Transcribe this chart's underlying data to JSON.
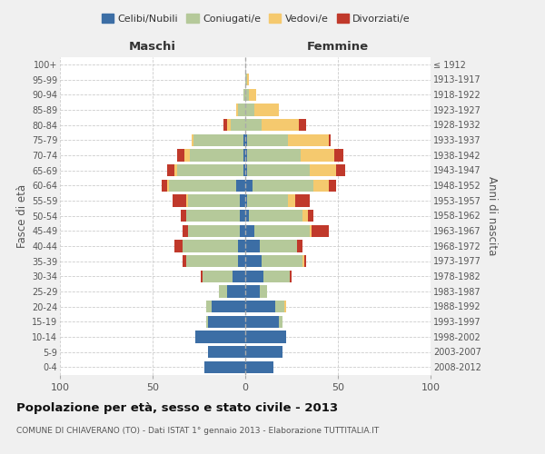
{
  "age_groups": [
    "0-4",
    "5-9",
    "10-14",
    "15-19",
    "20-24",
    "25-29",
    "30-34",
    "35-39",
    "40-44",
    "45-49",
    "50-54",
    "55-59",
    "60-64",
    "65-69",
    "70-74",
    "75-79",
    "80-84",
    "85-89",
    "90-94",
    "95-99",
    "100+"
  ],
  "birth_years": [
    "2008-2012",
    "2003-2007",
    "1998-2002",
    "1993-1997",
    "1988-1992",
    "1983-1987",
    "1978-1982",
    "1973-1977",
    "1968-1972",
    "1963-1967",
    "1958-1962",
    "1953-1957",
    "1948-1952",
    "1943-1947",
    "1938-1942",
    "1933-1937",
    "1928-1932",
    "1923-1927",
    "1918-1922",
    "1913-1917",
    "≤ 1912"
  ],
  "male": {
    "celibi": [
      22,
      20,
      27,
      20,
      18,
      10,
      7,
      4,
      4,
      3,
      3,
      3,
      5,
      1,
      1,
      1,
      0,
      0,
      0,
      0,
      0
    ],
    "coniugati": [
      0,
      0,
      0,
      1,
      3,
      4,
      16,
      28,
      30,
      28,
      29,
      28,
      36,
      36,
      29,
      27,
      8,
      4,
      1,
      0,
      0
    ],
    "vedovi": [
      0,
      0,
      0,
      0,
      0,
      0,
      0,
      0,
      0,
      0,
      0,
      1,
      1,
      1,
      3,
      1,
      2,
      1,
      0,
      0,
      0
    ],
    "divorziati": [
      0,
      0,
      0,
      0,
      0,
      0,
      1,
      2,
      4,
      3,
      3,
      7,
      3,
      4,
      4,
      0,
      2,
      0,
      0,
      0,
      0
    ]
  },
  "female": {
    "nubili": [
      15,
      20,
      22,
      18,
      16,
      8,
      10,
      9,
      8,
      5,
      2,
      1,
      4,
      1,
      1,
      1,
      0,
      0,
      0,
      0,
      0
    ],
    "coniugate": [
      0,
      0,
      0,
      2,
      5,
      4,
      14,
      22,
      20,
      30,
      29,
      22,
      33,
      34,
      29,
      22,
      9,
      5,
      2,
      1,
      0
    ],
    "vedove": [
      0,
      0,
      0,
      0,
      1,
      0,
      0,
      1,
      0,
      1,
      3,
      4,
      8,
      14,
      18,
      22,
      20,
      13,
      4,
      1,
      0
    ],
    "divorziate": [
      0,
      0,
      0,
      0,
      0,
      0,
      1,
      1,
      3,
      9,
      3,
      8,
      4,
      5,
      5,
      1,
      4,
      0,
      0,
      0,
      0
    ]
  },
  "colors": {
    "celibi": "#3c6ea5",
    "coniugati": "#b5c99a",
    "vedovi": "#f5c96e",
    "divorziati": "#c0392b"
  },
  "title": "Popolazione per età, sesso e stato civile - 2013",
  "subtitle": "COMUNE DI CHIAVERANO (TO) - Dati ISTAT 1° gennaio 2013 - Elaborazione TUTTITALIA.IT",
  "xlabel_left": "Maschi",
  "xlabel_right": "Femmine",
  "ylabel_left": "Fasce di età",
  "ylabel_right": "Anni di nascita",
  "xlim": 100,
  "background_color": "#f0f0f0",
  "plot_background": "#ffffff"
}
